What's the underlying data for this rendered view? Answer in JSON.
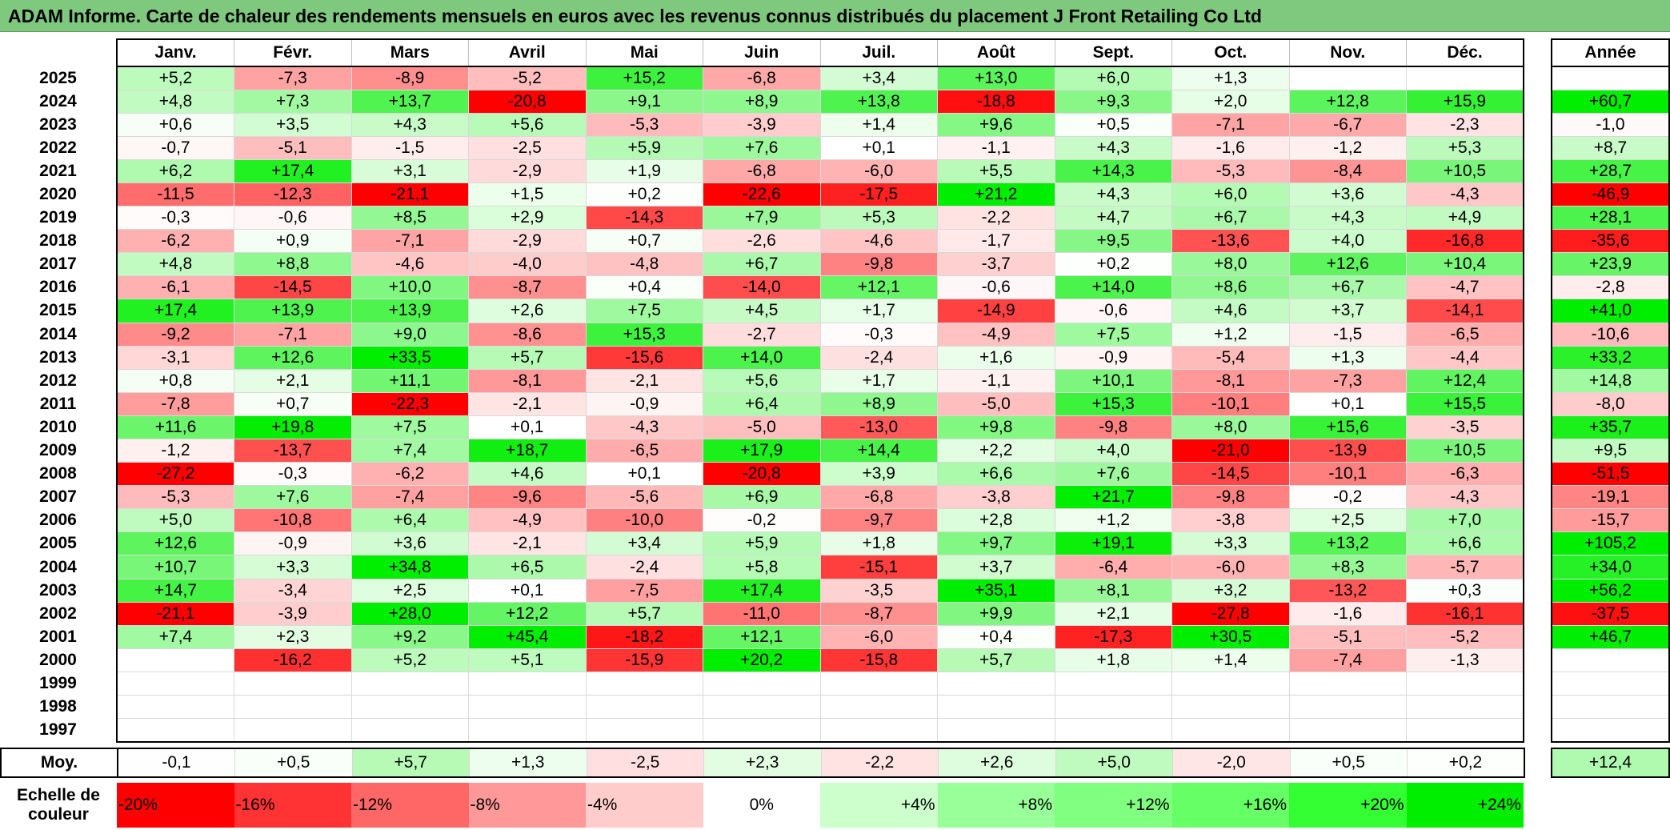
{
  "title": "ADAM Informe. Carte de chaleur des rendements mensuels en euros avec les revenus connus distribués du placement J Front Retailing Co Ltd",
  "chart_data": {
    "type": "heatmap",
    "columns": [
      "Janv.",
      "Févr.",
      "Mars",
      "Avril",
      "Mai",
      "Juin",
      "Juil.",
      "Août",
      "Sept.",
      "Oct.",
      "Nov.",
      "Déc."
    ],
    "year_header": "Année",
    "rows": [
      {
        "year": "2025",
        "months": [
          "+5,2",
          "-7,3",
          "-8,9",
          "-5,2",
          "+15,2",
          "-6,8",
          "+3,4",
          "+13,0",
          "+6,0",
          "+1,3",
          "",
          ""
        ],
        "annual": ""
      },
      {
        "year": "2024",
        "months": [
          "+4,8",
          "+7,3",
          "+13,7",
          "-20,8",
          "+9,1",
          "+8,9",
          "+13,8",
          "-18,8",
          "+9,3",
          "+2,0",
          "+12,8",
          "+15,9"
        ],
        "annual": "+60,7"
      },
      {
        "year": "2023",
        "months": [
          "+0,6",
          "+3,5",
          "+4,3",
          "+5,6",
          "-5,3",
          "-3,9",
          "+1,4",
          "+9,6",
          "+0,5",
          "-7,1",
          "-6,7",
          "-2,3"
        ],
        "annual": "-1,0"
      },
      {
        "year": "2022",
        "months": [
          "-0,7",
          "-5,1",
          "-1,5",
          "-2,5",
          "+5,9",
          "+7,6",
          "+0,1",
          "-1,1",
          "+4,3",
          "-1,6",
          "-1,2",
          "+5,3"
        ],
        "annual": "+8,7"
      },
      {
        "year": "2021",
        "months": [
          "+6,2",
          "+17,4",
          "+3,1",
          "-2,9",
          "+1,9",
          "-6,8",
          "-6,0",
          "+5,5",
          "+14,3",
          "-5,3",
          "-8,4",
          "+10,5"
        ],
        "annual": "+28,7"
      },
      {
        "year": "2020",
        "months": [
          "-11,5",
          "-12,3",
          "-21,1",
          "+1,5",
          "+0,2",
          "-22,6",
          "-17,5",
          "+21,2",
          "+4,3",
          "+6,0",
          "+3,6",
          "-4,3"
        ],
        "annual": "-46,9"
      },
      {
        "year": "2019",
        "months": [
          "-0,3",
          "-0,6",
          "+8,5",
          "+2,9",
          "-14,3",
          "+7,9",
          "+5,3",
          "-2,2",
          "+4,7",
          "+6,7",
          "+4,3",
          "+4,9"
        ],
        "annual": "+28,1"
      },
      {
        "year": "2018",
        "months": [
          "-6,2",
          "+0,9",
          "-7,1",
          "-2,9",
          "+0,7",
          "-2,6",
          "-4,6",
          "-1,7",
          "+9,5",
          "-13,6",
          "+4,0",
          "-16,8"
        ],
        "annual": "-35,6"
      },
      {
        "year": "2017",
        "months": [
          "+4,8",
          "+8,8",
          "-4,6",
          "-4,0",
          "-4,8",
          "+6,7",
          "-9,8",
          "-3,7",
          "+0,2",
          "+8,0",
          "+12,6",
          "+10,4"
        ],
        "annual": "+23,9"
      },
      {
        "year": "2016",
        "months": [
          "-6,1",
          "-14,5",
          "+10,0",
          "-8,7",
          "+0,4",
          "-14,0",
          "+12,1",
          "-0,6",
          "+14,0",
          "+8,6",
          "+6,7",
          "-4,7"
        ],
        "annual": "-2,8"
      },
      {
        "year": "2015",
        "months": [
          "+17,4",
          "+13,9",
          "+13,9",
          "+2,6",
          "+7,5",
          "+4,5",
          "+1,7",
          "-14,9",
          "-0,6",
          "+4,6",
          "+3,7",
          "-14,1"
        ],
        "annual": "+41,0"
      },
      {
        "year": "2014",
        "months": [
          "-9,2",
          "-7,1",
          "+9,0",
          "-8,6",
          "+15,3",
          "-2,7",
          "-0,3",
          "-4,9",
          "+7,5",
          "+1,2",
          "-1,5",
          "-6,5"
        ],
        "annual": "-10,6"
      },
      {
        "year": "2013",
        "months": [
          "-3,1",
          "+12,6",
          "+33,5",
          "+5,7",
          "-15,6",
          "+14,0",
          "-2,4",
          "+1,6",
          "-0,9",
          "-5,4",
          "+1,3",
          "-4,4"
        ],
        "annual": "+33,2"
      },
      {
        "year": "2012",
        "months": [
          "+0,8",
          "+2,1",
          "+11,1",
          "-8,1",
          "-2,1",
          "+5,6",
          "+1,7",
          "-1,1",
          "+10,1",
          "-8,1",
          "-7,3",
          "+12,4"
        ],
        "annual": "+14,8"
      },
      {
        "year": "2011",
        "months": [
          "-7,8",
          "+0,7",
          "-22,3",
          "-2,1",
          "-0,9",
          "+6,4",
          "+8,9",
          "-5,0",
          "+15,3",
          "-10,1",
          "+0,1",
          "+15,5"
        ],
        "annual": "-8,0"
      },
      {
        "year": "2010",
        "months": [
          "+11,6",
          "+19,8",
          "+7,5",
          "+0,1",
          "-4,3",
          "-5,0",
          "-13,0",
          "+9,8",
          "-9,8",
          "+8,0",
          "+15,6",
          "-3,5"
        ],
        "annual": "+35,7"
      },
      {
        "year": "2009",
        "months": [
          "-1,2",
          "-13,7",
          "+7,4",
          "+18,7",
          "-6,5",
          "+17,9",
          "+14,4",
          "+2,2",
          "+4,0",
          "-21,0",
          "-13,9",
          "+10,5"
        ],
        "annual": "+9,5"
      },
      {
        "year": "2008",
        "months": [
          "-27,2",
          "-0,3",
          "-6,2",
          "+4,6",
          "+0,1",
          "-20,8",
          "+3,9",
          "+6,6",
          "+7,6",
          "-14,5",
          "-10,1",
          "-6,3"
        ],
        "annual": "-51,5"
      },
      {
        "year": "2007",
        "months": [
          "-5,3",
          "+7,6",
          "-7,4",
          "-9,6",
          "-5,6",
          "+6,9",
          "-6,8",
          "-3,8",
          "+21,7",
          "-9,8",
          "-0,2",
          "-4,3"
        ],
        "annual": "-19,1"
      },
      {
        "year": "2006",
        "months": [
          "+5,0",
          "-10,8",
          "+6,4",
          "-4,9",
          "-10,0",
          "-0,2",
          "-9,7",
          "+2,8",
          "+1,2",
          "-3,8",
          "+2,5",
          "+7,0"
        ],
        "annual": "-15,7"
      },
      {
        "year": "2005",
        "months": [
          "+12,6",
          "-0,9",
          "+3,6",
          "-2,1",
          "+3,4",
          "+5,9",
          "+1,8",
          "+9,7",
          "+19,1",
          "+3,3",
          "+13,2",
          "+6,6"
        ],
        "annual": "+105,2"
      },
      {
        "year": "2004",
        "months": [
          "+10,7",
          "+3,3",
          "+34,8",
          "+6,5",
          "-2,4",
          "+5,8",
          "-15,1",
          "+3,7",
          "-6,4",
          "-6,0",
          "+8,3",
          "-5,7"
        ],
        "annual": "+34,0"
      },
      {
        "year": "2003",
        "months": [
          "+14,7",
          "-3,4",
          "+2,5",
          "+0,1",
          "-7,5",
          "+17,4",
          "-3,5",
          "+35,1",
          "+8,1",
          "+3,2",
          "-13,2",
          "+0,3"
        ],
        "annual": "+56,2"
      },
      {
        "year": "2002",
        "months": [
          "-21,1",
          "-3,9",
          "+28,0",
          "+12,2",
          "+5,7",
          "-11,0",
          "-8,7",
          "+9,9",
          "+2,1",
          "-27,8",
          "-1,6",
          "-16,1"
        ],
        "annual": "-37,5"
      },
      {
        "year": "2001",
        "months": [
          "+7,4",
          "+2,3",
          "+9,2",
          "+45,4",
          "-18,2",
          "+12,1",
          "-6,0",
          "+0,4",
          "-17,3",
          "+30,5",
          "-5,1",
          "-5,2"
        ],
        "annual": "+46,7"
      },
      {
        "year": "2000",
        "months": [
          "",
          "-16,2",
          "+5,2",
          "+5,1",
          "-15,9",
          "+20,2",
          "-15,8",
          "+5,7",
          "+1,8",
          "+1,4",
          "-7,4",
          "-1,3"
        ],
        "annual": ""
      },
      {
        "year": "1999",
        "months": [
          "",
          "",
          "",
          "",
          "",
          "",
          "",
          "",
          "",
          "",
          "",
          ""
        ],
        "annual": ""
      },
      {
        "year": "1998",
        "months": [
          "",
          "",
          "",
          "",
          "",
          "",
          "",
          "",
          "",
          "",
          "",
          ""
        ],
        "annual": ""
      },
      {
        "year": "1997",
        "months": [
          "",
          "",
          "",
          "",
          "",
          "",
          "",
          "",
          "",
          "",
          "",
          ""
        ],
        "annual": ""
      }
    ],
    "average": {
      "label": "Moy.",
      "months": [
        "-0,1",
        "+0,5",
        "+5,7",
        "+1,3",
        "-2,5",
        "+2,3",
        "-2,2",
        "+2,6",
        "+5,0",
        "-2,0",
        "+0,5",
        "+0,2"
      ],
      "annual": "+12,4"
    },
    "color_scale": {
      "label": "Echelle de couleur",
      "stops": [
        {
          "label": "-20%",
          "value": -20,
          "color": "#ff0000"
        },
        {
          "label": "-16%",
          "value": -16,
          "color": "#ff3333"
        },
        {
          "label": "-12%",
          "value": -12,
          "color": "#ff6666"
        },
        {
          "label": "-8%",
          "value": -8,
          "color": "#ff9999"
        },
        {
          "label": "-4%",
          "value": -4,
          "color": "#ffcccc"
        },
        {
          "label": "0%",
          "value": 0,
          "color": "#ffffff"
        },
        {
          "label": "+4%",
          "value": 4,
          "color": "#ccffcc"
        },
        {
          "label": "+8%",
          "value": 8,
          "color": "#99ff99"
        },
        {
          "label": "+12%",
          "value": 12,
          "color": "#80ff80"
        },
        {
          "label": "+16%",
          "value": 16,
          "color": "#66ff66"
        },
        {
          "label": "+20%",
          "value": 20,
          "color": "#33ff33"
        },
        {
          "label": "+24%",
          "value": 24,
          "color": "#00ee00"
        }
      ]
    }
  }
}
